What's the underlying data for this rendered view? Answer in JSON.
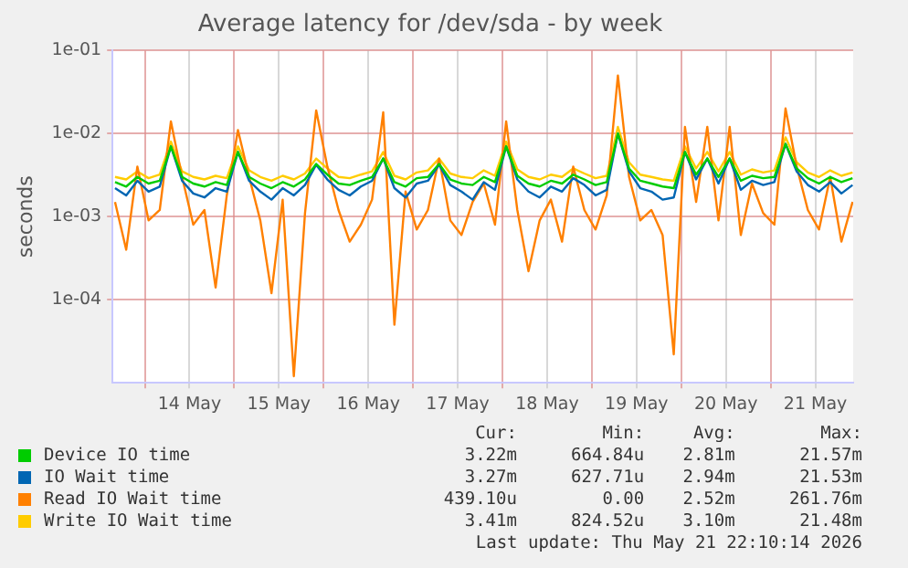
{
  "chart_data": {
    "type": "line",
    "title": "Average latency for /dev/sda - by week",
    "ylabel": "seconds",
    "log": "y",
    "grid": true,
    "legend": "bottom",
    "marker": "none",
    "line_style": "solid",
    "x": [
      "2026-05-13T16:00",
      "2026-05-13T19:00",
      "2026-05-13T22:00",
      "2026-05-14T01:00",
      "2026-05-14T04:00",
      "2026-05-14T07:00",
      "2026-05-14T10:00",
      "2026-05-14T13:00",
      "2026-05-14T16:00",
      "2026-05-14T19:00",
      "2026-05-14T22:00",
      "2026-05-15T01:00",
      "2026-05-15T04:00",
      "2026-05-15T07:00",
      "2026-05-15T10:00",
      "2026-05-15T13:00",
      "2026-05-15T16:00",
      "2026-05-15T19:00",
      "2026-05-15T22:00",
      "2026-05-16T01:00",
      "2026-05-16T04:00",
      "2026-05-16T07:00",
      "2026-05-16T10:00",
      "2026-05-16T13:00",
      "2026-05-16T16:00",
      "2026-05-16T19:00",
      "2026-05-16T22:00",
      "2026-05-17T01:00",
      "2026-05-17T04:00",
      "2026-05-17T07:00",
      "2026-05-17T10:00",
      "2026-05-17T13:00",
      "2026-05-17T16:00",
      "2026-05-17T19:00",
      "2026-05-17T22:00",
      "2026-05-18T01:00",
      "2026-05-18T04:00",
      "2026-05-18T07:00",
      "2026-05-18T10:00",
      "2026-05-18T13:00",
      "2026-05-18T16:00",
      "2026-05-18T19:00",
      "2026-05-18T22:00",
      "2026-05-19T01:00",
      "2026-05-19T04:00",
      "2026-05-19T07:00",
      "2026-05-19T10:00",
      "2026-05-19T13:00",
      "2026-05-19T16:00",
      "2026-05-19T19:00",
      "2026-05-19T22:00",
      "2026-05-20T01:00",
      "2026-05-20T04:00",
      "2026-05-20T07:00",
      "2026-05-20T10:00",
      "2026-05-20T13:00",
      "2026-05-20T16:00",
      "2026-05-20T19:00",
      "2026-05-20T22:00",
      "2026-05-21T01:00",
      "2026-05-21T04:00",
      "2026-05-21T07:00",
      "2026-05-21T10:00",
      "2026-05-21T13:00",
      "2026-05-21T16:00",
      "2026-05-21T19:00",
      "2026-05-21T22:00"
    ],
    "xlim": [
      "2026-05-13T15:20",
      "2026-05-21T22:10"
    ],
    "xticks": [
      {
        "value": "2026-05-14T00:00",
        "label": null
      },
      {
        "value": "2026-05-14T12:00",
        "label": "14 May"
      },
      {
        "value": "2026-05-15T00:00",
        "label": null
      },
      {
        "value": "2026-05-15T12:00",
        "label": "15 May"
      },
      {
        "value": "2026-05-16T00:00",
        "label": null
      },
      {
        "value": "2026-05-16T12:00",
        "label": "16 May"
      },
      {
        "value": "2026-05-17T00:00",
        "label": null
      },
      {
        "value": "2026-05-17T12:00",
        "label": "17 May"
      },
      {
        "value": "2026-05-18T00:00",
        "label": null
      },
      {
        "value": "2026-05-18T12:00",
        "label": "18 May"
      },
      {
        "value": "2026-05-19T00:00",
        "label": null
      },
      {
        "value": "2026-05-19T12:00",
        "label": "19 May"
      },
      {
        "value": "2026-05-20T00:00",
        "label": null
      },
      {
        "value": "2026-05-20T12:00",
        "label": "20 May"
      },
      {
        "value": "2026-05-21T00:00",
        "label": null
      },
      {
        "value": "2026-05-21T12:00",
        "label": "21 May"
      }
    ],
    "ylim": [
      1e-05,
      0.1
    ],
    "yticks": [
      {
        "value": 0.0001,
        "label": "1e-04"
      },
      {
        "value": 0.001,
        "label": "1e-03"
      },
      {
        "value": 0.01,
        "label": "1e-02"
      },
      {
        "value": 0.1,
        "label": "1e-01"
      }
    ],
    "series": [
      {
        "name": "Device IO time",
        "color": "#00cc00",
        "values": [
          0.0026,
          0.0023,
          0.003,
          0.0025,
          0.0027,
          0.007,
          0.003,
          0.0025,
          0.0023,
          0.0026,
          0.0024,
          0.006,
          0.003,
          0.0025,
          0.0022,
          0.0026,
          0.0023,
          0.0028,
          0.0043,
          0.0032,
          0.0025,
          0.0024,
          0.0027,
          0.003,
          0.005,
          0.0026,
          0.0023,
          0.0029,
          0.003,
          0.0043,
          0.0028,
          0.0025,
          0.0024,
          0.003,
          0.0026,
          0.007,
          0.0031,
          0.0025,
          0.0023,
          0.0027,
          0.0025,
          0.0032,
          0.0028,
          0.0024,
          0.0026,
          0.01,
          0.0038,
          0.0027,
          0.0025,
          0.0023,
          0.0022,
          0.006,
          0.0032,
          0.005,
          0.003,
          0.005,
          0.0027,
          0.0031,
          0.0029,
          0.003,
          0.0075,
          0.0038,
          0.0029,
          0.0025,
          0.003,
          0.0026,
          0.0029
        ]
      },
      {
        "name": "IO Wait time",
        "color": "#0066b3",
        "values": [
          0.0022,
          0.0018,
          0.0027,
          0.002,
          0.0023,
          0.007,
          0.0027,
          0.0019,
          0.0017,
          0.0022,
          0.002,
          0.006,
          0.0027,
          0.002,
          0.0016,
          0.0022,
          0.0018,
          0.0024,
          0.0042,
          0.0028,
          0.0021,
          0.0018,
          0.0023,
          0.0027,
          0.005,
          0.0022,
          0.0017,
          0.0025,
          0.0027,
          0.0042,
          0.0024,
          0.002,
          0.0016,
          0.0026,
          0.0021,
          0.007,
          0.0028,
          0.002,
          0.0017,
          0.0023,
          0.002,
          0.0029,
          0.0024,
          0.0018,
          0.0021,
          0.01,
          0.0035,
          0.0022,
          0.002,
          0.0016,
          0.0017,
          0.006,
          0.0028,
          0.005,
          0.0025,
          0.005,
          0.0021,
          0.0027,
          0.0024,
          0.0026,
          0.0075,
          0.0035,
          0.0024,
          0.002,
          0.0026,
          0.0019,
          0.0024
        ]
      },
      {
        "name": "Read IO Wait time",
        "color": "#ff8000",
        "values": [
          0.0015,
          0.0004,
          0.004,
          0.0009,
          0.0012,
          0.014,
          0.003,
          0.0008,
          0.0012,
          0.00014,
          0.0018,
          0.011,
          0.003,
          0.0009,
          0.00012,
          0.0016,
          1.2e-05,
          0.0011,
          0.019,
          0.004,
          0.0012,
          0.0005,
          0.0008,
          0.0016,
          0.018,
          5e-05,
          0.002,
          0.0007,
          0.0012,
          0.005,
          0.0009,
          0.0006,
          0.0015,
          0.0025,
          0.0008,
          0.014,
          0.0012,
          0.00022,
          0.0009,
          0.0016,
          0.0005,
          0.004,
          0.0012,
          0.0007,
          0.0018,
          0.05,
          0.003,
          0.0009,
          0.0012,
          0.0006,
          2.2e-05,
          0.012,
          0.0015,
          0.012,
          0.0009,
          0.012,
          0.0006,
          0.0025,
          0.0011,
          0.0008,
          0.02,
          0.004,
          0.0012,
          0.0007,
          0.003,
          0.0005,
          0.0015
        ]
      },
      {
        "name": "Write IO Wait time",
        "color": "#ffcc00",
        "values": [
          0.003,
          0.0028,
          0.0035,
          0.0029,
          0.0032,
          0.008,
          0.0035,
          0.003,
          0.0028,
          0.0031,
          0.0029,
          0.007,
          0.0036,
          0.003,
          0.0027,
          0.0031,
          0.0028,
          0.0033,
          0.005,
          0.0038,
          0.003,
          0.0029,
          0.0032,
          0.0035,
          0.006,
          0.0031,
          0.0028,
          0.0034,
          0.0036,
          0.005,
          0.0033,
          0.003,
          0.0029,
          0.0036,
          0.0031,
          0.008,
          0.0037,
          0.003,
          0.0028,
          0.0032,
          0.003,
          0.0038,
          0.0033,
          0.0029,
          0.0031,
          0.012,
          0.0045,
          0.0032,
          0.003,
          0.0028,
          0.0027,
          0.007,
          0.0038,
          0.006,
          0.0035,
          0.006,
          0.0032,
          0.0037,
          0.0034,
          0.0036,
          0.009,
          0.0045,
          0.0034,
          0.003,
          0.0036,
          0.0031,
          0.0034
        ]
      }
    ],
    "annotations": [
      "Cur:",
      "Min:",
      "Avg:",
      "Max:",
      "3.22m",
      "664.84u",
      "2.81m",
      "21.57m",
      "3.27m",
      "627.71u",
      "2.94m",
      "21.53m",
      "439.10u",
      "0.00",
      "2.52m",
      "261.76m",
      "3.41m",
      "824.52u",
      "3.10m",
      "21.48m",
      "Last update: Thu May 21 22:10:14 2026"
    ]
  }
}
